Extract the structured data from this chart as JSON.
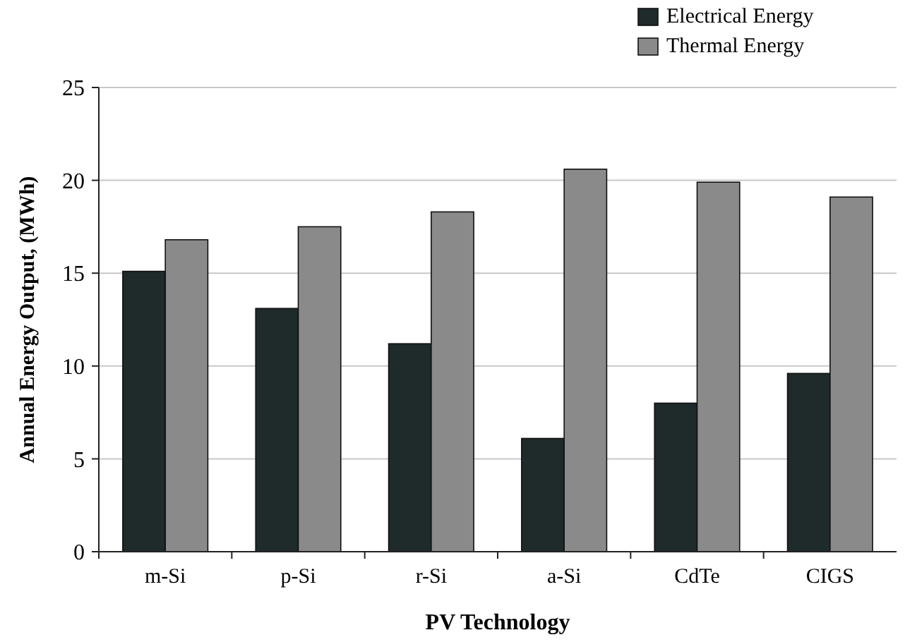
{
  "chart_data": {
    "type": "bar",
    "xlabel": "PV Technology",
    "ylabel": "Annual Energy Output, (MWh)",
    "categories": [
      "m-Si",
      "p-Si",
      "r-Si",
      "a-Si",
      "CdTe",
      "CIGS"
    ],
    "series": [
      {
        "name": "Electrical Energy",
        "color": "#1f2a2a",
        "values": [
          15.1,
          13.1,
          11.2,
          6.1,
          8.0,
          9.6
        ]
      },
      {
        "name": "Thermal Energy",
        "color": "#8a8a8a",
        "values": [
          16.8,
          17.5,
          18.3,
          20.6,
          19.9,
          19.1
        ]
      }
    ],
    "ylim": [
      0,
      25
    ],
    "yticks": [
      0,
      5,
      10,
      15,
      20,
      25
    ],
    "grid": "y",
    "legend": "top right"
  }
}
